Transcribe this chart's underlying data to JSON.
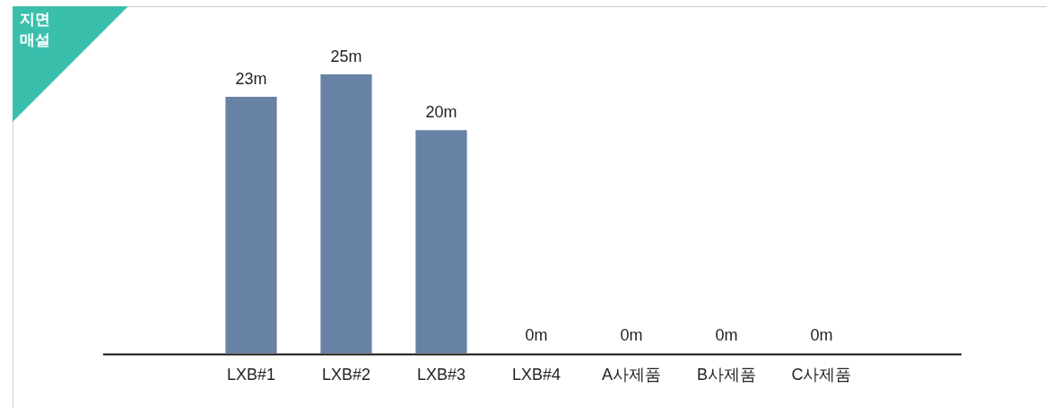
{
  "chart_data": {
    "type": "bar",
    "title": "지면\n매설",
    "categories": [
      "LXB#1",
      "LXB#2",
      "LXB#3",
      "LXB#4",
      "A사제품",
      "B사제품",
      "C사제품"
    ],
    "values": [
      23,
      25,
      20,
      0,
      0,
      0,
      0
    ],
    "value_labels": [
      "23m",
      "25m",
      "20m",
      "0m",
      "0m",
      "0m",
      "0m"
    ],
    "color": "#6882a6",
    "grid": false,
    "legend": false
  }
}
